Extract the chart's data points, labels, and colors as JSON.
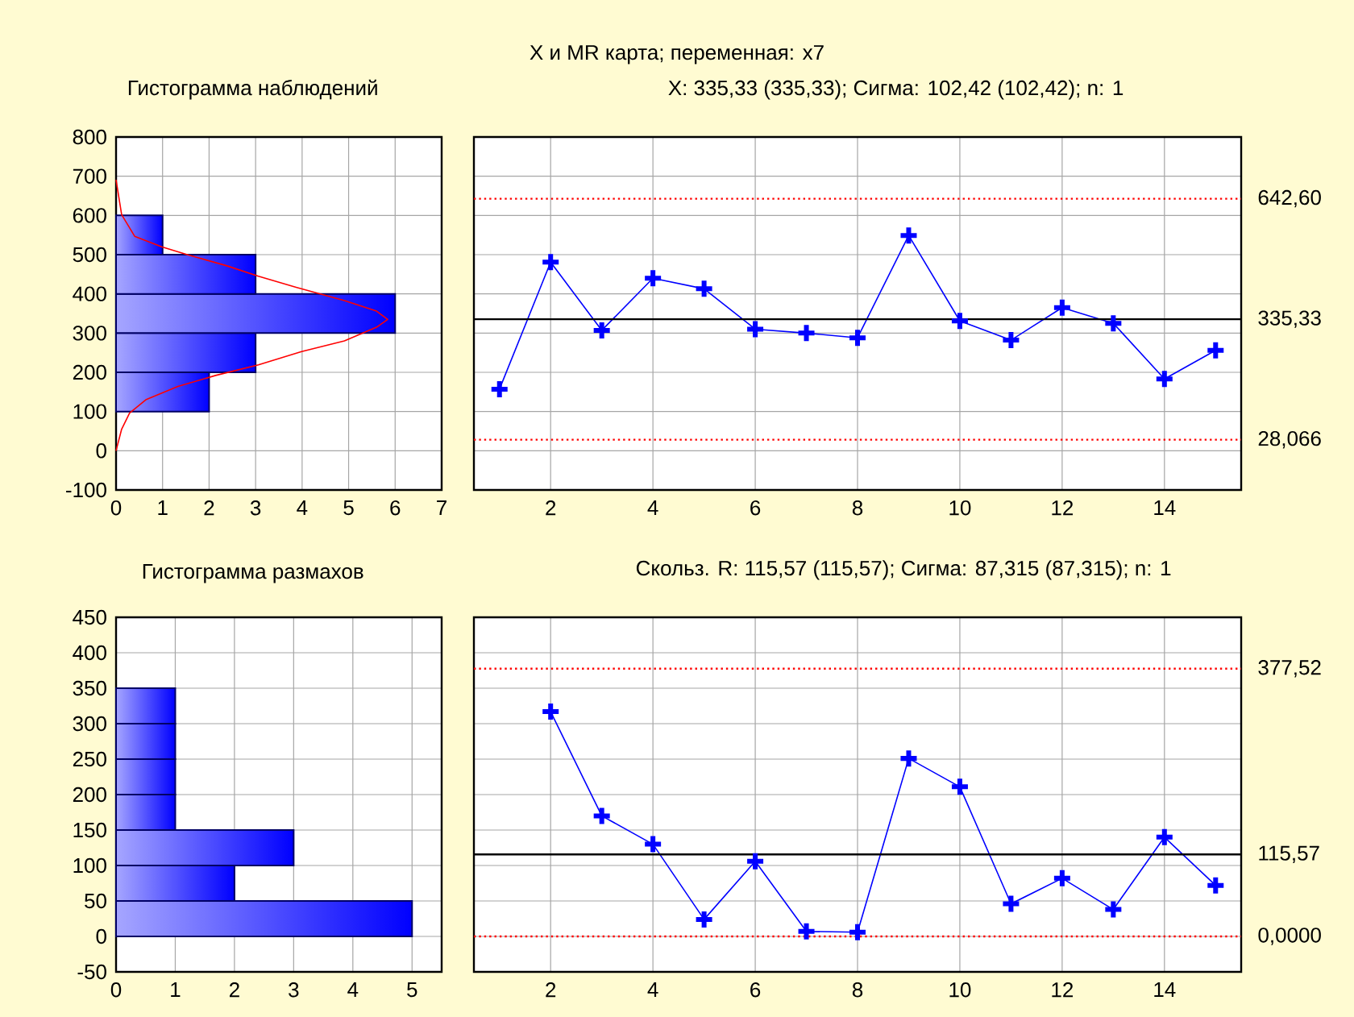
{
  "chart_data": [
    {
      "type": "histogram",
      "orientation": "horizontal",
      "title": "Гистограмма наблюдений",
      "bins": [
        100,
        200,
        300,
        400,
        500,
        600
      ],
      "values": [
        2,
        3,
        6,
        3,
        1
      ],
      "color": "#0000ff",
      "xlim": [
        0,
        7
      ],
      "xticks": [
        0,
        1,
        2,
        3,
        4,
        5,
        6,
        7
      ],
      "ylim": [
        -100,
        800
      ],
      "yticks": [
        -100,
        0,
        100,
        200,
        300,
        400,
        500,
        600,
        700,
        800
      ],
      "grid": true,
      "series": [
        {
          "type": "line",
          "color": "#ff0000",
          "x": [
            0,
            55,
            96,
            130,
            164,
            192,
            219,
            253,
            280,
            315,
            335,
            356,
            383,
            417,
            445,
            472,
            499,
            520,
            547,
            602,
            691
          ],
          "values": [
            0,
            0.12,
            0.29,
            0.64,
            1.33,
            2.14,
            3.06,
            3.99,
            4.91,
            5.6,
            5.84,
            5.6,
            4.91,
            3.87,
            3.06,
            2.37,
            1.56,
            0.98,
            0.4,
            0.12,
            0
          ]
        }
      ]
    },
    {
      "type": "line",
      "title": "X и MR карта; переменная:  x7",
      "subtitle": "X: 335,33 (335,33); Сигма: 102,42 (102,42); n: 1",
      "x": [
        1,
        2,
        3,
        4,
        5,
        6,
        7,
        8,
        9,
        10,
        11,
        12,
        13,
        14,
        15
      ],
      "values": [
        157,
        481,
        307,
        440,
        413,
        310,
        300,
        288,
        549,
        331,
        282,
        365,
        325,
        183,
        256
      ],
      "color": "#0000ff",
      "marker": "cross",
      "line_style": "solid",
      "xlim": [
        0.5,
        15.5
      ],
      "xticks": [
        2,
        4,
        6,
        8,
        10,
        12,
        14
      ],
      "ylim": [
        -100,
        800
      ],
      "yticks": [
        -100,
        0,
        100,
        200,
        300,
        400,
        500,
        600,
        700,
        800
      ],
      "tick_labels": "x",
      "grid": true,
      "ref_lines": [
        {
          "axis": "y",
          "value": 642.6,
          "label": "642,60",
          "color": "#ff0000",
          "line_style": "dotted"
        },
        {
          "axis": "y",
          "value": 335.33,
          "label": "335,33",
          "color": "#000000",
          "line_style": "solid"
        },
        {
          "axis": "y",
          "value": 28.066,
          "label": "28,066",
          "color": "#ff0000",
          "line_style": "dotted"
        }
      ]
    },
    {
      "type": "histogram",
      "orientation": "horizontal",
      "title": "Гистограмма размахов",
      "bins": [
        0,
        50,
        100,
        150,
        200,
        250,
        300,
        350
      ],
      "values": [
        5,
        2,
        3,
        1,
        1,
        1,
        1
      ],
      "color": "#0000ff",
      "xlim": [
        0,
        5.5
      ],
      "xticks": [
        0,
        1,
        2,
        3,
        4,
        5
      ],
      "ylim": [
        -50,
        450
      ],
      "yticks": [
        -50,
        0,
        50,
        100,
        150,
        200,
        250,
        300,
        350,
        400,
        450
      ],
      "grid": true
    },
    {
      "type": "line",
      "title": "Скольз. R: 115,57 (115,57); Сигма: 87,315 (87,315); n: 1",
      "x": [
        2,
        3,
        4,
        5,
        6,
        7,
        8,
        9,
        10,
        11,
        12,
        13,
        14,
        15
      ],
      "values": [
        317,
        170,
        130,
        24,
        106,
        7,
        6,
        251,
        211,
        46,
        82,
        38,
        140,
        72
      ],
      "color": "#0000ff",
      "marker": "cross",
      "line_style": "solid",
      "xlim": [
        0.5,
        15.5
      ],
      "xticks": [
        2,
        4,
        6,
        8,
        10,
        12,
        14
      ],
      "ylim": [
        -50,
        450
      ],
      "yticks": [
        -50,
        0,
        50,
        100,
        150,
        200,
        250,
        300,
        350,
        400,
        450
      ],
      "tick_labels": "x",
      "grid": true,
      "ref_lines": [
        {
          "axis": "y",
          "value": 377.52,
          "label": "377,52",
          "color": "#ff0000",
          "line_style": "dotted"
        },
        {
          "axis": "y",
          "value": 115.57,
          "label": "115,57",
          "color": "#000000",
          "line_style": "solid"
        },
        {
          "axis": "y",
          "value": 0,
          "label": "0,0000",
          "color": "#ff0000",
          "line_style": "dotted"
        }
      ]
    }
  ]
}
